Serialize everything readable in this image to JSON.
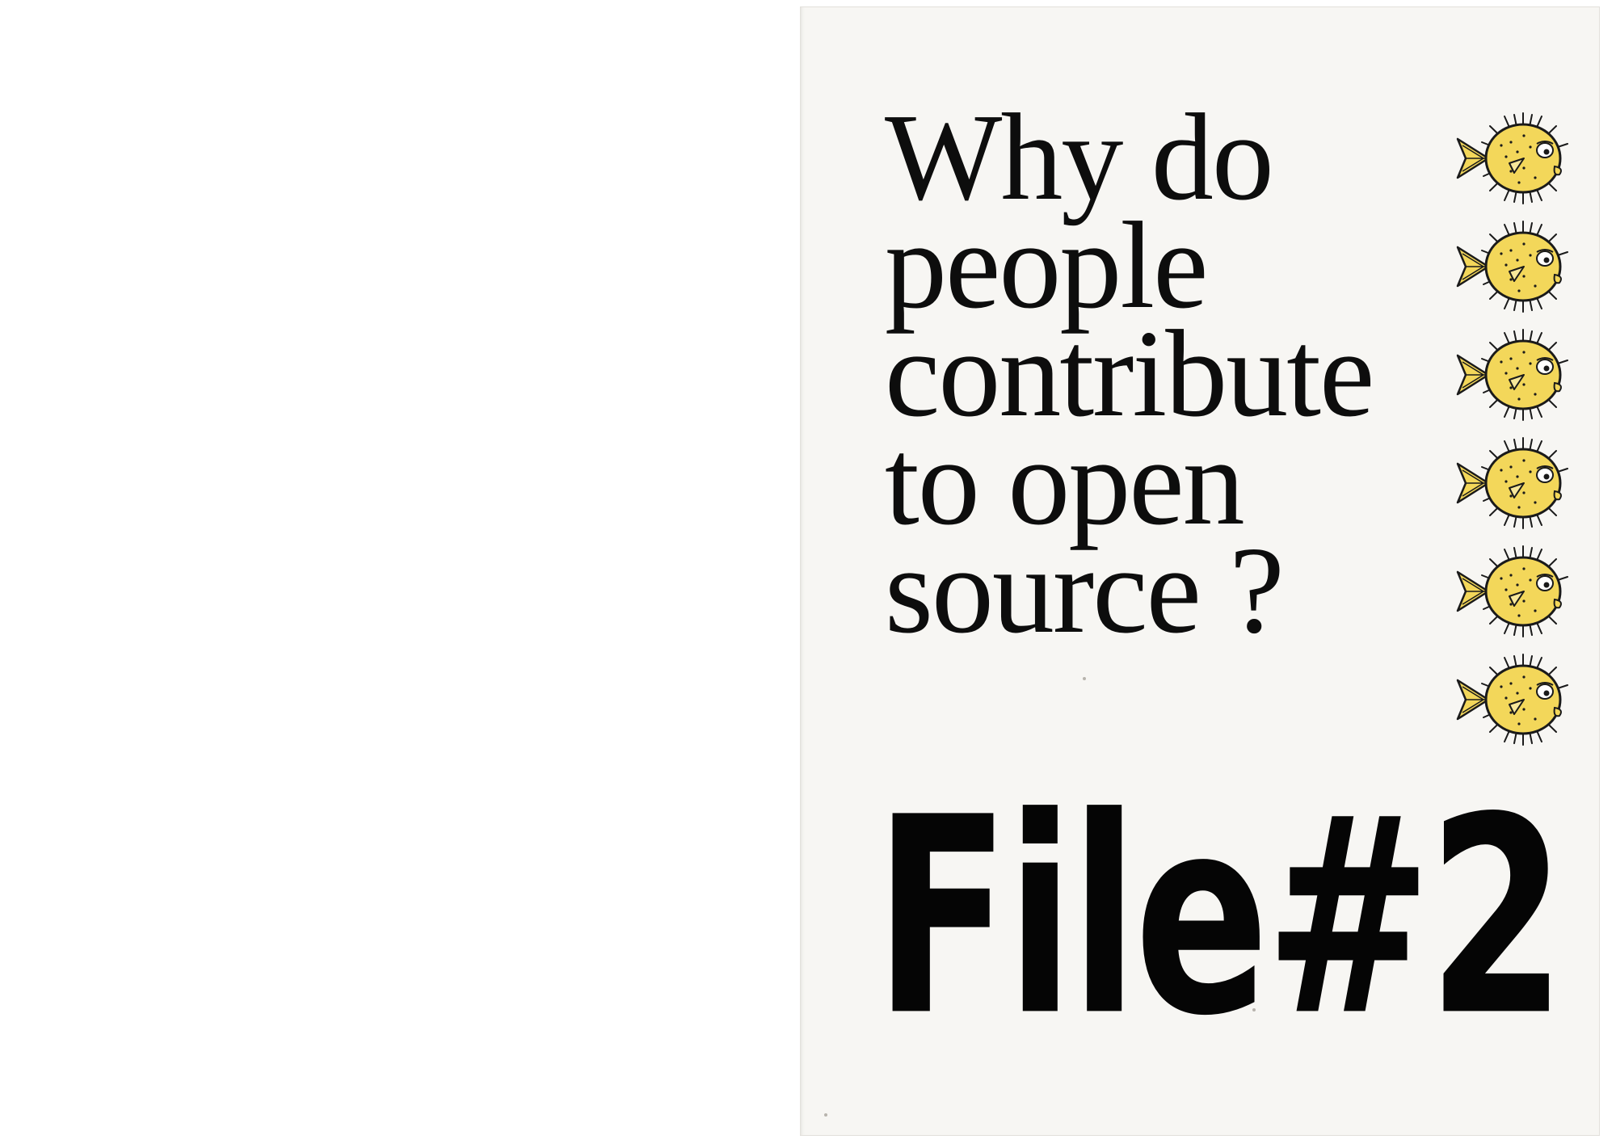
{
  "cover": {
    "title_lines": [
      "Why do",
      "people",
      "contribute",
      "to open",
      "source ?"
    ],
    "issue_label": "File#2",
    "mascot_icon": "pufferfish-icon",
    "mascot_count": 6,
    "colors": {
      "paper": "#f7f6f3",
      "ink": "#0d0d0d",
      "fish_body": "#f3d75a",
      "fish_outline": "#1a1a1a"
    }
  }
}
